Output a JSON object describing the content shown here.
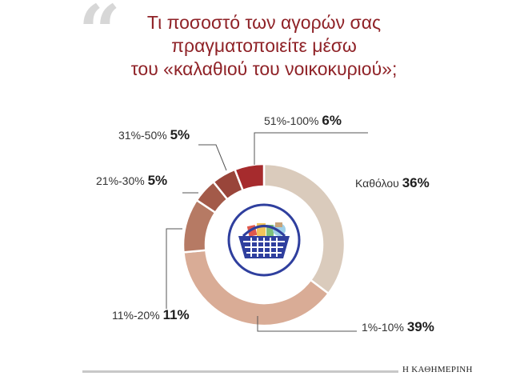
{
  "title_lines": [
    "Τι ποσοστό των αγορών σας",
    "πραγματοποιείτε μέσω",
    "του «καλαθιού του νοικοκυριού»;"
  ],
  "brand": "Η ΚΑΘΗΜΕΡΙΝΗ",
  "icon": "shopping-basket-icon",
  "colors": {
    "title": "#8f2227",
    "slices": [
      "#dacbbc",
      "#d9ac96",
      "#b67a64",
      "#a35a49",
      "#99453a",
      "#a62b2d"
    ]
  },
  "chart_data": {
    "type": "pie",
    "donut": true,
    "title": "Τι ποσοστό των αγορών σας πραγματοποιείτε μέσω του «καλαθιού του νοικοκυριού»;",
    "slices": [
      {
        "label": "Καθόλου",
        "value": 36,
        "value_text": "36%"
      },
      {
        "label": "1%-10%",
        "value": 39,
        "value_text": "39%"
      },
      {
        "label": "11%-20%",
        "value": 11,
        "value_text": "11%"
      },
      {
        "label": "21%-30%",
        "value": 5,
        "value_text": "5%"
      },
      {
        "label": "31%-50%",
        "value": 5,
        "value_text": "5%"
      },
      {
        "label": "51%-100%",
        "value": 6,
        "value_text": "6%"
      }
    ],
    "start": "12 o'clock",
    "direction": "clockwise"
  }
}
